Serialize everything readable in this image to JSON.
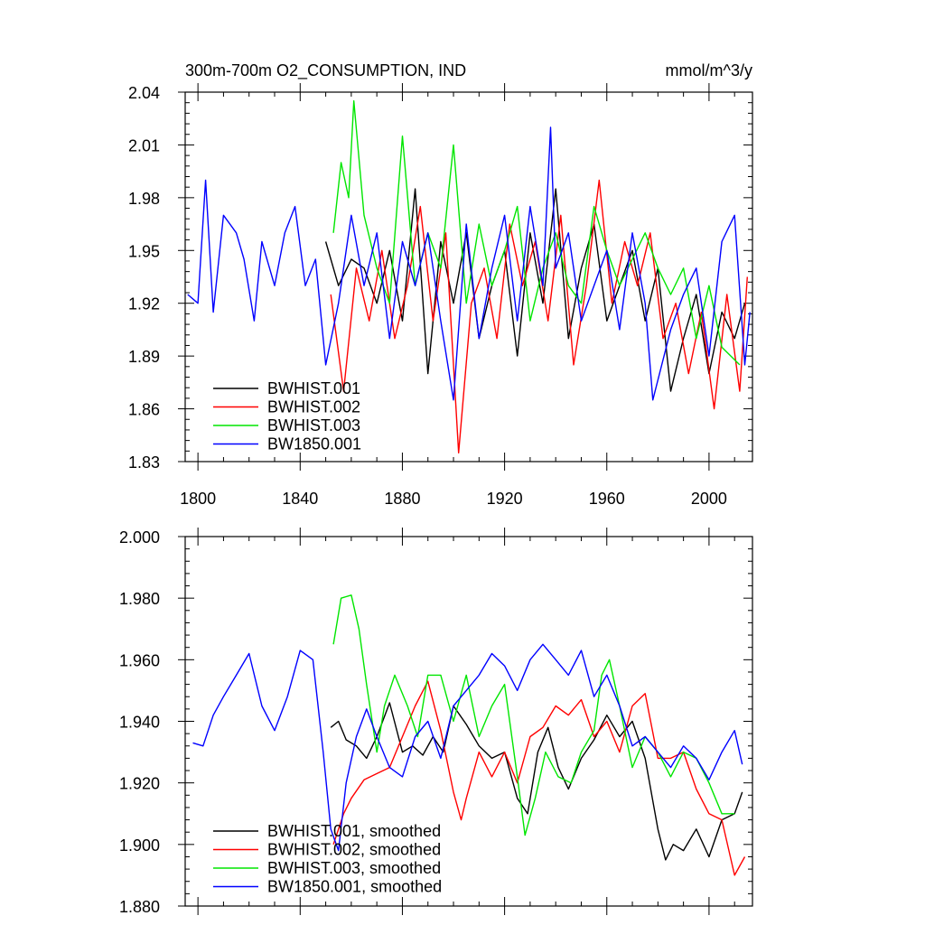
{
  "colors": {
    "black": "#000000",
    "red": "#ff0000",
    "green": "#00e600",
    "blue": "#0000ff"
  },
  "chart_data": [
    {
      "type": "line",
      "title_left": "300m-700m O2_CONSUMPTION, IND",
      "title_right": "mmol/m^3/y",
      "xlim": [
        1795,
        2017
      ],
      "ylim": [
        1.83,
        2.04
      ],
      "xticks": [
        1800,
        1840,
        1880,
        1920,
        1960,
        2000
      ],
      "yticks": [
        1.83,
        1.86,
        1.89,
        1.92,
        1.95,
        1.98,
        2.01,
        2.04
      ],
      "ytick_labels": [
        "1.83",
        "1.86",
        "1.89",
        "1.92",
        "1.95",
        "1.98",
        "2.01",
        "2.04"
      ],
      "legend_position": "bottom-left",
      "series": [
        {
          "name": "BWHIST.001",
          "color": "black",
          "x": [
            1850,
            1855,
            1860,
            1865,
            1870,
            1875,
            1880,
            1885,
            1890,
            1895,
            1900,
            1905,
            1910,
            1915,
            1920,
            1925,
            1930,
            1935,
            1940,
            1945,
            1950,
            1955,
            1960,
            1965,
            1970,
            1975,
            1980,
            1985,
            1990,
            1995,
            2000,
            2005,
            2010,
            2014
          ],
          "y": [
            1.955,
            1.93,
            1.945,
            1.94,
            1.92,
            1.95,
            1.91,
            1.985,
            1.88,
            1.955,
            1.92,
            1.96,
            1.9,
            1.93,
            1.95,
            1.89,
            1.96,
            1.92,
            1.985,
            1.9,
            1.94,
            1.965,
            1.91,
            1.93,
            1.95,
            1.91,
            1.94,
            1.87,
            1.9,
            1.925,
            1.88,
            1.915,
            1.9,
            1.92
          ]
        },
        {
          "name": "BWHIST.002",
          "color": "red",
          "x": [
            1852,
            1857,
            1862,
            1867,
            1872,
            1877,
            1882,
            1887,
            1892,
            1897,
            1902,
            1907,
            1912,
            1917,
            1922,
            1927,
            1932,
            1937,
            1942,
            1947,
            1952,
            1957,
            1962,
            1967,
            1972,
            1977,
            1982,
            1987,
            1992,
            1997,
            2002,
            2007,
            2012,
            2015
          ],
          "y": [
            1.925,
            1.87,
            1.94,
            1.91,
            1.95,
            1.9,
            1.93,
            1.975,
            1.91,
            1.96,
            1.835,
            1.92,
            1.94,
            1.9,
            1.965,
            1.93,
            1.955,
            1.91,
            1.97,
            1.885,
            1.93,
            1.99,
            1.92,
            1.955,
            1.93,
            1.96,
            1.9,
            1.92,
            1.88,
            1.915,
            1.86,
            1.925,
            1.87,
            1.935
          ]
        },
        {
          "name": "BWHIST.003",
          "color": "green",
          "x": [
            1853,
            1856,
            1859,
            1861,
            1865,
            1870,
            1875,
            1880,
            1885,
            1890,
            1895,
            1900,
            1905,
            1910,
            1915,
            1920,
            1925,
            1930,
            1935,
            1940,
            1945,
            1950,
            1955,
            1960,
            1965,
            1970,
            1975,
            1980,
            1985,
            1990,
            1995,
            2000,
            2005,
            2012
          ],
          "y": [
            1.96,
            2.0,
            1.98,
            2.035,
            1.97,
            1.94,
            1.92,
            2.015,
            1.93,
            1.96,
            1.94,
            2.01,
            1.92,
            1.965,
            1.93,
            1.95,
            1.975,
            1.91,
            1.94,
            1.96,
            1.93,
            1.92,
            1.975,
            1.95,
            1.93,
            1.945,
            1.96,
            1.94,
            1.925,
            1.94,
            1.9,
            1.93,
            1.895,
            1.885
          ]
        },
        {
          "name": "BW1850.001",
          "color": "blue",
          "x": [
            1796,
            1800,
            1803,
            1806,
            1810,
            1815,
            1818,
            1822,
            1825,
            1830,
            1834,
            1838,
            1842,
            1846,
            1850,
            1855,
            1860,
            1865,
            1870,
            1875,
            1880,
            1885,
            1890,
            1895,
            1900,
            1905,
            1910,
            1915,
            1920,
            1925,
            1930,
            1935,
            1938,
            1940,
            1945,
            1950,
            1955,
            1960,
            1965,
            1970,
            1975,
            1978,
            1985,
            1990,
            1995,
            2000,
            2005,
            2010,
            2014,
            2016
          ],
          "y": [
            1.925,
            1.92,
            1.99,
            1.915,
            1.97,
            1.96,
            1.945,
            1.91,
            1.955,
            1.93,
            1.96,
            1.975,
            1.93,
            1.945,
            1.885,
            1.92,
            1.97,
            1.93,
            1.96,
            1.9,
            1.955,
            1.93,
            1.96,
            1.91,
            1.865,
            1.965,
            1.9,
            1.94,
            1.97,
            1.91,
            1.975,
            1.93,
            2.02,
            1.94,
            1.96,
            1.91,
            1.93,
            1.95,
            1.905,
            1.96,
            1.92,
            1.865,
            1.905,
            1.925,
            1.94,
            1.89,
            1.955,
            1.97,
            1.885,
            1.915
          ]
        }
      ]
    },
    {
      "type": "line",
      "xlim": [
        1795,
        2017
      ],
      "ylim": [
        1.88,
        2.0
      ],
      "xticks": [
        1800,
        1840,
        1880,
        1920,
        1960,
        2000
      ],
      "yticks": [
        1.88,
        1.9,
        1.92,
        1.94,
        1.96,
        1.98,
        2.0
      ],
      "ytick_labels": [
        "1.880",
        "1.900",
        "1.920",
        "1.940",
        "1.960",
        "1.980",
        "2.000"
      ],
      "legend_position": "bottom-left",
      "series": [
        {
          "name": "BWHIST.001, smoothed",
          "color": "black",
          "x": [
            1852,
            1855,
            1858,
            1862,
            1866,
            1870,
            1875,
            1880,
            1884,
            1888,
            1892,
            1896,
            1900,
            1905,
            1910,
            1915,
            1920,
            1925,
            1929,
            1933,
            1937,
            1941,
            1945,
            1950,
            1955,
            1960,
            1965,
            1970,
            1975,
            1980,
            1983,
            1986,
            1990,
            1995,
            2000,
            2005,
            2010,
            2013
          ],
          "y": [
            1.938,
            1.94,
            1.934,
            1.932,
            1.928,
            1.935,
            1.946,
            1.93,
            1.932,
            1.929,
            1.935,
            1.93,
            1.945,
            1.939,
            1.932,
            1.928,
            1.93,
            1.915,
            1.91,
            1.93,
            1.938,
            1.925,
            1.918,
            1.928,
            1.934,
            1.942,
            1.935,
            1.94,
            1.928,
            1.905,
            1.895,
            1.9,
            1.898,
            1.905,
            1.896,
            1.908,
            1.91,
            1.917
          ]
        },
        {
          "name": "BWHIST.002, smoothed",
          "color": "red",
          "x": [
            1853,
            1857,
            1860,
            1865,
            1870,
            1875,
            1880,
            1885,
            1890,
            1895,
            1900,
            1903,
            1905,
            1910,
            1915,
            1920,
            1925,
            1930,
            1935,
            1940,
            1945,
            1950,
            1955,
            1960,
            1965,
            1970,
            1975,
            1980,
            1985,
            1990,
            1995,
            2000,
            2005,
            2010,
            2014
          ],
          "y": [
            1.9,
            1.91,
            1.915,
            1.921,
            1.923,
            1.925,
            1.935,
            1.945,
            1.953,
            1.937,
            1.917,
            1.908,
            1.915,
            1.93,
            1.922,
            1.93,
            1.92,
            1.935,
            1.938,
            1.945,
            1.942,
            1.947,
            1.935,
            1.94,
            1.93,
            1.945,
            1.949,
            1.928,
            1.928,
            1.93,
            1.918,
            1.91,
            1.908,
            1.89,
            1.896
          ]
        },
        {
          "name": "BWHIST.003, smoothed",
          "color": "green",
          "x": [
            1853,
            1856,
            1860,
            1863,
            1866,
            1870,
            1873,
            1877,
            1882,
            1886,
            1890,
            1895,
            1900,
            1905,
            1910,
            1915,
            1920,
            1925,
            1928,
            1932,
            1936,
            1941,
            1946,
            1950,
            1955,
            1958,
            1961,
            1965,
            1970,
            1975,
            1980,
            1985,
            1990,
            1995,
            2000,
            2005,
            2010
          ],
          "y": [
            1.965,
            1.98,
            1.981,
            1.97,
            1.952,
            1.93,
            1.945,
            1.955,
            1.945,
            1.935,
            1.955,
            1.955,
            1.94,
            1.955,
            1.935,
            1.945,
            1.952,
            1.922,
            1.903,
            1.915,
            1.93,
            1.922,
            1.92,
            1.93,
            1.937,
            1.955,
            1.96,
            1.945,
            1.925,
            1.935,
            1.93,
            1.922,
            1.93,
            1.928,
            1.92,
            1.91,
            1.91
          ]
        },
        {
          "name": "BW1850.001, smoothed",
          "color": "blue",
          "x": [
            1798,
            1802,
            1806,
            1810,
            1815,
            1820,
            1825,
            1830,
            1835,
            1840,
            1845,
            1849,
            1852,
            1855,
            1858,
            1862,
            1866,
            1870,
            1875,
            1880,
            1885,
            1890,
            1895,
            1900,
            1905,
            1910,
            1915,
            1920,
            1925,
            1930,
            1935,
            1940,
            1945,
            1950,
            1955,
            1960,
            1965,
            1970,
            1975,
            1980,
            1985,
            1990,
            1995,
            2000,
            2005,
            2010,
            2013
          ],
          "y": [
            1.933,
            1.932,
            1.942,
            1.948,
            1.955,
            1.962,
            1.945,
            1.937,
            1.948,
            1.963,
            1.96,
            1.93,
            1.905,
            1.898,
            1.92,
            1.935,
            1.944,
            1.935,
            1.925,
            1.922,
            1.935,
            1.94,
            1.928,
            1.945,
            1.95,
            1.955,
            1.962,
            1.958,
            1.95,
            1.96,
            1.965,
            1.96,
            1.955,
            1.963,
            1.948,
            1.955,
            1.945,
            1.932,
            1.935,
            1.93,
            1.925,
            1.932,
            1.928,
            1.921,
            1.93,
            1.937,
            1.926
          ]
        }
      ]
    }
  ]
}
